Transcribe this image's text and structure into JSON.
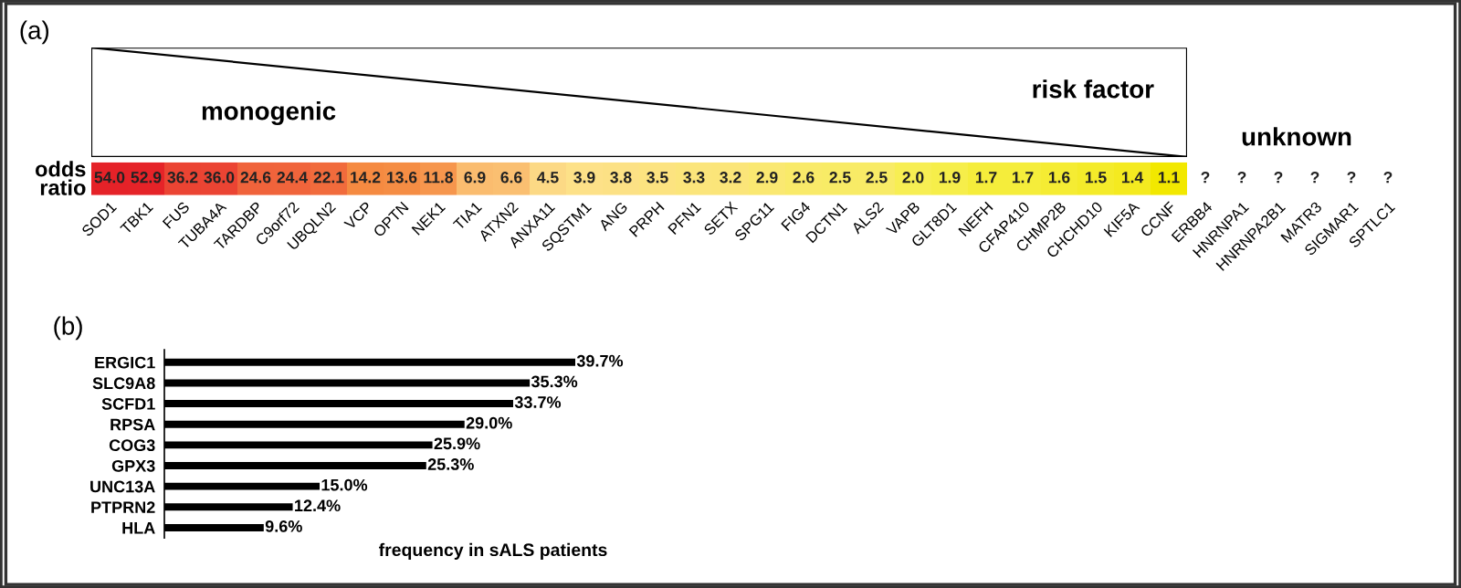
{
  "chart_data": [
    {
      "type": "heatmap",
      "title": "(a)",
      "annotations": [
        "monogenic",
        "risk factor",
        "unknown"
      ],
      "categories": [
        "SOD1",
        "TBK1",
        "FUS",
        "TUBA4A",
        "TARDBP",
        "C9orf72",
        "UBQLN2",
        "VCP",
        "OPTN",
        "NEK1",
        "TIA1",
        "ATXN2",
        "ANXA11",
        "SQSTM1",
        "ANG",
        "PRPH",
        "PFN1",
        "SETX",
        "SPG11",
        "FIG4",
        "DCTN1",
        "ALS2",
        "VAPB",
        "GLT8D1",
        "NEFH",
        "CFAP410",
        "CHMP2B",
        "CHCHD10",
        "KIF5A",
        "CCNF",
        "ERBB4",
        "HNRNPA1",
        "HNRNPA2B1",
        "MATR3",
        "SIGMAR1",
        "SPTLC1"
      ],
      "y_categories": [
        "odds ratio"
      ],
      "cells": [
        [
          54.0,
          52.9,
          36.2,
          36.0,
          24.6,
          24.4,
          22.1,
          14.2,
          13.6,
          11.8,
          6.9,
          6.6,
          4.5,
          3.9,
          3.8,
          3.5,
          3.3,
          3.2,
          2.9,
          2.6,
          2.5,
          2.5,
          2.0,
          1.9,
          1.7,
          1.7,
          1.6,
          1.5,
          1.4,
          1.1,
          null,
          null,
          null,
          null,
          null,
          null
        ]
      ],
      "cell_labels": [
        [
          "54.0",
          "52.9",
          "36.2",
          "36.0",
          "24.6",
          "24.4",
          "22.1",
          "14.2",
          "13.6",
          "11.8",
          "6.9",
          "6.6",
          "4.5",
          "3.9",
          "3.8",
          "3.5",
          "3.3",
          "3.2",
          "2.9",
          "2.6",
          "2.5",
          "2.5",
          "2.0",
          "1.9",
          "1.7",
          "1.7",
          "1.6",
          "1.5",
          "1.4",
          "1.1",
          "?",
          "?",
          "?",
          "?",
          "?",
          "?"
        ]
      ]
    },
    {
      "type": "bar",
      "orientation": "horizontal",
      "title": "(b)",
      "xlabel": "frequency in sALS patients",
      "categories": [
        "ERGIC1",
        "SLC9A8",
        "SCFD1",
        "RPSA",
        "COG3",
        "GPX3",
        "UNC13A",
        "PTPRN2",
        "HLA"
      ],
      "values": [
        39.7,
        35.3,
        33.7,
        29.0,
        25.9,
        25.3,
        15.0,
        12.4,
        9.6
      ],
      "value_labels": [
        "39.7%",
        "35.3%",
        "33.7%",
        "29.0%",
        "25.9%",
        "25.3%",
        "15.0%",
        "12.4%",
        "9.6%"
      ],
      "color": "#000000",
      "tick_labels": "y"
    }
  ]
}
